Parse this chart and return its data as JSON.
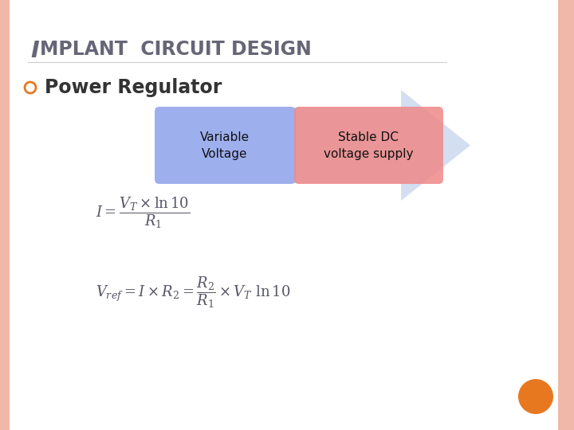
{
  "title_line1": "I",
  "title_line2": "MPLANT  CIRCUIT DESIGN",
  "title_color": "#666677",
  "title_fontsize": 20,
  "bullet_text": "Power Regulator",
  "bullet_color": "#333333",
  "bullet_fontsize": 17,
  "bullet_marker_color": "#e87820",
  "box1_text": "Variable\nVoltage",
  "box1_color": "#99aaee",
  "box2_text": "Stable DC\nvoltage supply",
  "box2_color": "#ee8888",
  "arrow_color": "#b8c8e8",
  "formula1": "$I = \\dfrac{V_T \\times \\ln 10}{R_1}$",
  "formula2": "$V_{ref} = I \\times R_2 = \\dfrac{R_2}{R_1} \\times V_T\\ \\ln 10$",
  "formula_color": "#555566",
  "formula_fontsize": 13,
  "bg_color": "#ffffff",
  "left_border_color": "#f0b8a8",
  "orange_dot_color": "#e87820",
  "slide_bg": "#ffffff"
}
